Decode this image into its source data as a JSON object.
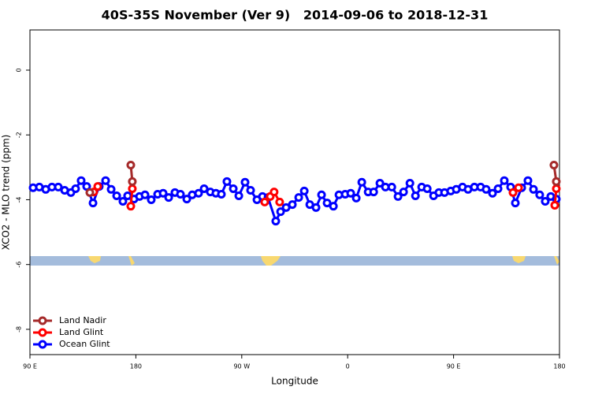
{
  "chart_data": {
    "type": "line",
    "title": "40S-35S November (Ver 9)   2014-09-06 to 2018-12-31",
    "x_label": "Longitude",
    "y_label": "XCO2 - MLO trend (ppm)",
    "xlim": [
      90,
      540
    ],
    "xticks": [
      {
        "value": 90,
        "label": "90 E"
      },
      {
        "value": 180,
        "label": "180"
      },
      {
        "value": 270,
        "label": "90 W"
      },
      {
        "value": 360,
        "label": "0"
      },
      {
        "value": 450,
        "label": "90 E"
      },
      {
        "value": 540,
        "label": "180"
      }
    ],
    "ylim": [
      -8.78,
      1.24
    ],
    "yticks": [
      0,
      -2,
      -4,
      -6,
      -8
    ],
    "legend": "bottom-left",
    "series": [
      {
        "name": "Land Nadir",
        "color": "#a52a2a",
        "x": [
          140.9,
          null,
          175.7,
          177.0,
          null,
          535.3,
          537.3
        ],
        "values": [
          -3.78,
          null,
          -2.93,
          -3.44,
          null,
          -2.93,
          -3.44
        ]
      },
      {
        "name": "Land Glint",
        "color": "#ff0000",
        "x": [
          144.2,
          147.6,
          null,
          175.7,
          177.0,
          null,
          289.5,
          294.2,
          297.5,
          302.2,
          null,
          500.5,
          505.2,
          null,
          536.0,
          537.3
        ],
        "values": [
          -3.76,
          -3.59,
          null,
          -4.2,
          -3.66,
          null,
          -4.07,
          -3.9,
          -3.76,
          -4.07,
          null,
          -3.78,
          -3.63,
          null,
          -4.17,
          -3.66
        ]
      },
      {
        "name": "Ocean Glint",
        "color": "#0000ff",
        "x": [
          92.7,
          98.0,
          103.4,
          108.7,
          114.1,
          119.5,
          124.8,
          128.8,
          133.5,
          138.2,
          143.6,
          148.9,
          154.3,
          159.0,
          163.7,
          169.0,
          173.0,
          178.4,
          183.1,
          187.8,
          193.1,
          198.5,
          203.2,
          207.9,
          213.2,
          217.9,
          223.3,
          227.9,
          233.3,
          238.0,
          243.3,
          248.0,
          252.7,
          257.4,
          262.8,
          267.5,
          272.8,
          277.5,
          282.9,
          287.6,
          292.3,
          298.9,
          303.0,
          307.7,
          313.0,
          318.4,
          323.1,
          327.8,
          333.1,
          337.8,
          342.5,
          347.9,
          352.6,
          357.9,
          362.6,
          367.3,
          372.0,
          377.4,
          382.1,
          387.4,
          392.1,
          397.5,
          402.8,
          407.5,
          412.9,
          417.6,
          422.9,
          427.6,
          433.0,
          437.5,
          442.3,
          447.6,
          452.3,
          457.6,
          462.3,
          467.7,
          473.0,
          477.7,
          483.1,
          487.8,
          493.1,
          498.5,
          502.5,
          507.9,
          513.2,
          517.9,
          523.2,
          527.9,
          532.6,
          537.3
        ],
        "values": [
          -3.63,
          -3.61,
          -3.68,
          -3.61,
          -3.61,
          -3.71,
          -3.78,
          -3.66,
          -3.41,
          -3.59,
          -4.1,
          -3.59,
          -3.41,
          -3.68,
          -3.88,
          -4.05,
          -3.88,
          -3.98,
          -3.9,
          -3.85,
          -4.0,
          -3.83,
          -3.8,
          -3.93,
          -3.78,
          -3.83,
          -3.98,
          -3.85,
          -3.8,
          -3.66,
          -3.76,
          -3.8,
          -3.83,
          -3.44,
          -3.66,
          -3.88,
          -3.46,
          -3.71,
          -4.0,
          -3.9,
          -3.93,
          -4.66,
          -4.37,
          -4.24,
          -4.15,
          -3.93,
          -3.73,
          -4.15,
          -4.24,
          -3.85,
          -4.1,
          -4.2,
          -3.85,
          -3.83,
          -3.8,
          -3.95,
          -3.46,
          -3.76,
          -3.76,
          -3.49,
          -3.61,
          -3.61,
          -3.9,
          -3.76,
          -3.49,
          -3.88,
          -3.61,
          -3.66,
          -3.88,
          -3.78,
          -3.78,
          -3.73,
          -3.68,
          -3.61,
          -3.68,
          -3.61,
          -3.61,
          -3.68,
          -3.8,
          -3.66,
          -3.41,
          -3.61,
          -4.1,
          -3.63,
          -3.41,
          -3.68,
          -3.85,
          -4.05,
          -3.9,
          -3.98
        ]
      }
    ]
  }
}
